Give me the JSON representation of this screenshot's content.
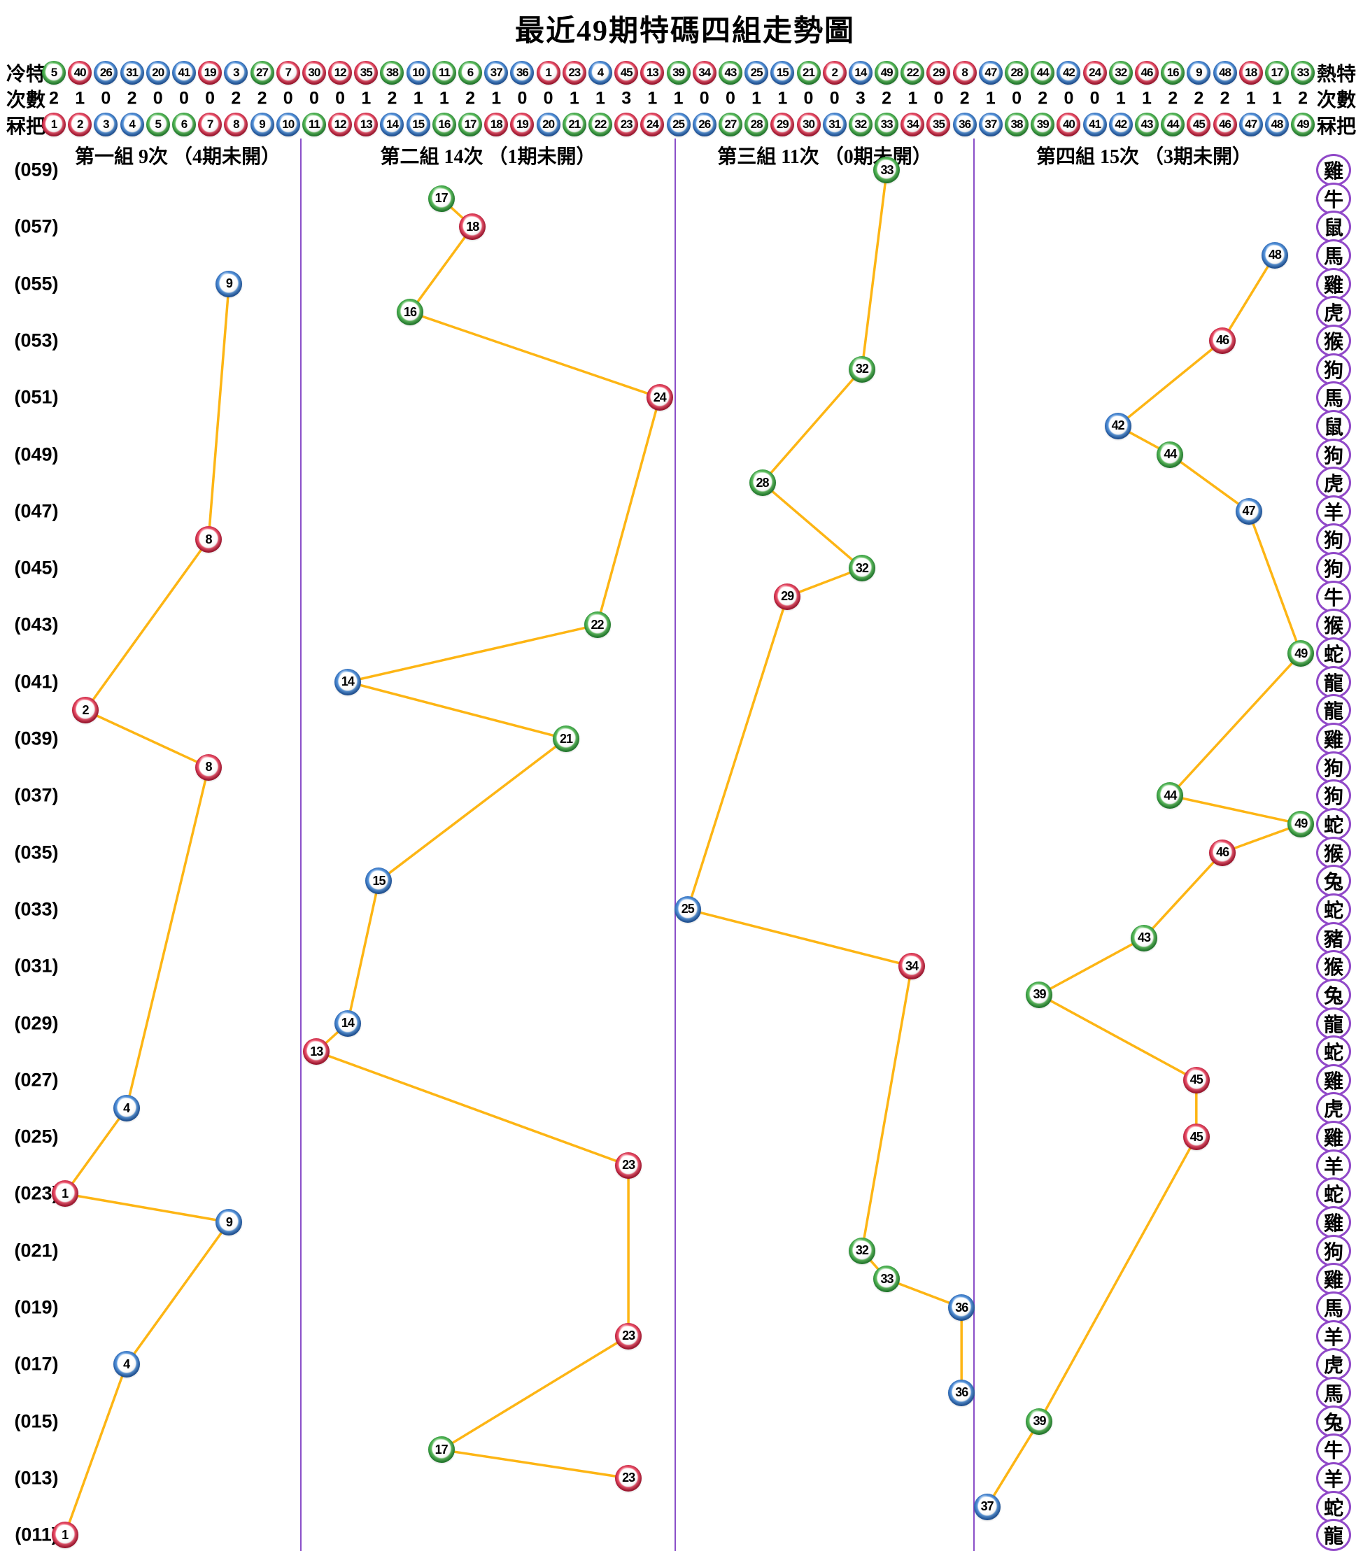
{
  "title": "最近49期特碼四組走勢圖",
  "header": {
    "cold_label": "冷特",
    "hot_label": "熱特",
    "counts_label": "次數",
    "number_label": "冧把",
    "cold_order": [
      5,
      40,
      26,
      31,
      20,
      41,
      19,
      3,
      27,
      7,
      30,
      12,
      35,
      38,
      10,
      11,
      6,
      37,
      36,
      1,
      23,
      4,
      45,
      13,
      39,
      34,
      43,
      25,
      15,
      21,
      2,
      14,
      49,
      22,
      29,
      8,
      47,
      28,
      44,
      42,
      24,
      32,
      46,
      16,
      9,
      48,
      18,
      17,
      33
    ],
    "counts": [
      2,
      1,
      0,
      2,
      0,
      0,
      0,
      2,
      2,
      0,
      0,
      0,
      1,
      2,
      1,
      1,
      2,
      1,
      0,
      0,
      1,
      1,
      3,
      1,
      1,
      0,
      0,
      1,
      1,
      0,
      0,
      3,
      2,
      1,
      0,
      2,
      1,
      0,
      2,
      0,
      0,
      1,
      1,
      2,
      2,
      2,
      1,
      1,
      2
    ],
    "numbers": [
      1,
      2,
      3,
      4,
      5,
      6,
      7,
      8,
      9,
      10,
      11,
      12,
      13,
      14,
      15,
      16,
      17,
      18,
      19,
      20,
      21,
      22,
      23,
      24,
      25,
      26,
      27,
      28,
      29,
      30,
      31,
      32,
      33,
      34,
      35,
      36,
      37,
      38,
      39,
      40,
      41,
      42,
      43,
      44,
      45,
      46,
      47,
      48,
      49
    ]
  },
  "groups": [
    {
      "label": "第一組 9次 （4期未開）",
      "start": 1,
      "end": 12
    },
    {
      "label": "第二組 14次 （1期未開）",
      "start": 13,
      "end": 24
    },
    {
      "label": "第三組 11次 （0期未開）",
      "start": 25,
      "end": 36
    },
    {
      "label": "第四組 15次 （3期未開）",
      "start": 37,
      "end": 49
    }
  ],
  "periods": [
    {
      "period": "059",
      "label": "(059)",
      "number": 33,
      "zodiac": "雞"
    },
    {
      "period": "058",
      "label": "",
      "number": 17,
      "zodiac": "牛"
    },
    {
      "period": "057",
      "label": "(057)",
      "number": 18,
      "zodiac": "鼠"
    },
    {
      "period": "056",
      "label": "",
      "number": 48,
      "zodiac": "馬"
    },
    {
      "period": "055",
      "label": "(055)",
      "number": 9,
      "zodiac": "雞"
    },
    {
      "period": "054",
      "label": "",
      "number": 16,
      "zodiac": "虎"
    },
    {
      "period": "053",
      "label": "(053)",
      "number": 46,
      "zodiac": "猴"
    },
    {
      "period": "052",
      "label": "",
      "number": 32,
      "zodiac": "狗"
    },
    {
      "period": "051",
      "label": "(051)",
      "number": 24,
      "zodiac": "馬"
    },
    {
      "period": "050",
      "label": "",
      "number": 42,
      "zodiac": "鼠"
    },
    {
      "period": "049",
      "label": "(049)",
      "number": 44,
      "zodiac": "狗"
    },
    {
      "period": "048",
      "label": "",
      "number": 28,
      "zodiac": "虎"
    },
    {
      "period": "047",
      "label": "(047)",
      "number": 47,
      "zodiac": "羊"
    },
    {
      "period": "046",
      "label": "",
      "number": 8,
      "zodiac": "狗"
    },
    {
      "period": "045",
      "label": "(045)",
      "number": 32,
      "zodiac": "狗"
    },
    {
      "period": "044",
      "label": "",
      "number": 29,
      "zodiac": "牛"
    },
    {
      "period": "043",
      "label": "(043)",
      "number": 22,
      "zodiac": "猴"
    },
    {
      "period": "042",
      "label": "",
      "number": 49,
      "zodiac": "蛇"
    },
    {
      "period": "041",
      "label": "(041)",
      "number": 14,
      "zodiac": "龍"
    },
    {
      "period": "040",
      "label": "",
      "number": 2,
      "zodiac": "龍"
    },
    {
      "period": "039",
      "label": "(039)",
      "number": 21,
      "zodiac": "雞"
    },
    {
      "period": "038",
      "label": "",
      "number": 8,
      "zodiac": "狗"
    },
    {
      "period": "037",
      "label": "(037)",
      "number": 44,
      "zodiac": "狗"
    },
    {
      "period": "036",
      "label": "",
      "number": 49,
      "zodiac": "蛇"
    },
    {
      "period": "035",
      "label": "(035)",
      "number": 46,
      "zodiac": "猴"
    },
    {
      "period": "034",
      "label": "",
      "number": 15,
      "zodiac": "兔"
    },
    {
      "period": "033",
      "label": "(033)",
      "number": 25,
      "zodiac": "蛇"
    },
    {
      "period": "032",
      "label": "",
      "number": 43,
      "zodiac": "豬"
    },
    {
      "period": "031",
      "label": "(031)",
      "number": 34,
      "zodiac": "猴"
    },
    {
      "period": "030",
      "label": "",
      "number": 39,
      "zodiac": "兔"
    },
    {
      "period": "029",
      "label": "(029)",
      "number": 14,
      "zodiac": "龍"
    },
    {
      "period": "028",
      "label": "",
      "number": 13,
      "zodiac": "蛇"
    },
    {
      "period": "027",
      "label": "(027)",
      "number": 45,
      "zodiac": "雞"
    },
    {
      "period": "026",
      "label": "",
      "number": 4,
      "zodiac": "虎"
    },
    {
      "period": "025",
      "label": "(025)",
      "number": 45,
      "zodiac": "雞"
    },
    {
      "period": "024",
      "label": "",
      "number": 23,
      "zodiac": "羊"
    },
    {
      "period": "023",
      "label": "(023)",
      "number": 1,
      "zodiac": "蛇"
    },
    {
      "period": "022",
      "label": "",
      "number": 9,
      "zodiac": "雞"
    },
    {
      "period": "021",
      "label": "(021)",
      "number": 32,
      "zodiac": "狗"
    },
    {
      "period": "020",
      "label": "",
      "number": 33,
      "zodiac": "雞"
    },
    {
      "period": "019",
      "label": "(019)",
      "number": 36,
      "zodiac": "馬"
    },
    {
      "period": "018",
      "label": "",
      "number": 23,
      "zodiac": "羊"
    },
    {
      "period": "017",
      "label": "(017)",
      "number": 4,
      "zodiac": "虎"
    },
    {
      "period": "016",
      "label": "",
      "number": 36,
      "zodiac": "馬"
    },
    {
      "period": "015",
      "label": "(015)",
      "number": 39,
      "zodiac": "兔"
    },
    {
      "period": "014",
      "label": "",
      "number": 17,
      "zodiac": "牛"
    },
    {
      "period": "013",
      "label": "(013)",
      "number": 23,
      "zodiac": "羊"
    },
    {
      "period": "012",
      "label": "",
      "number": 37,
      "zodiac": "蛇"
    },
    {
      "period": "011",
      "label": "(011)",
      "number": 1,
      "zodiac": "龍"
    }
  ],
  "ball_colors": {
    "red": [
      1,
      2,
      7,
      8,
      12,
      13,
      18,
      19,
      23,
      24,
      29,
      30,
      34,
      35,
      40,
      45,
      46
    ],
    "blue": [
      3,
      4,
      9,
      10,
      14,
      15,
      20,
      25,
      26,
      31,
      36,
      37,
      41,
      42,
      47,
      48
    ],
    "green": [
      5,
      6,
      11,
      16,
      17,
      21,
      22,
      27,
      28,
      32,
      33,
      38,
      39,
      43,
      44,
      49
    ]
  },
  "colors": {
    "red": "#c00d2e",
    "blue": "#1c5cb4",
    "green": "#1f9230",
    "trend_line": "#fdb514",
    "divider": "#8a4fc8",
    "zodiac_ring": "#9048c8"
  },
  "chart_data": {
    "type": "line",
    "title": "最近49期特碼四組走勢圖",
    "x_axis": "冧把 1-49，分四組：1-12 / 13-24 / 25-36 / 37-49",
    "y_axis": "期號 059（頂）至 011（底）",
    "series": [
      {
        "name": "第一組 9次 （4期未開）",
        "points": [
          {
            "period": "055",
            "value": 9
          },
          {
            "period": "046",
            "value": 8
          },
          {
            "period": "040",
            "value": 2
          },
          {
            "period": "038",
            "value": 8
          },
          {
            "period": "026",
            "value": 4
          },
          {
            "period": "023",
            "value": 1
          },
          {
            "period": "022",
            "value": 9
          },
          {
            "period": "017",
            "value": 4
          },
          {
            "period": "011",
            "value": 1
          }
        ]
      },
      {
        "name": "第二組 14次 （1期未開）",
        "points": [
          {
            "period": "058",
            "value": 17
          },
          {
            "period": "057",
            "value": 18
          },
          {
            "period": "054",
            "value": 16
          },
          {
            "period": "051",
            "value": 24
          },
          {
            "period": "043",
            "value": 22
          },
          {
            "period": "041",
            "value": 14
          },
          {
            "period": "039",
            "value": 21
          },
          {
            "period": "034",
            "value": 15
          },
          {
            "period": "029",
            "value": 14
          },
          {
            "period": "028",
            "value": 13
          },
          {
            "period": "024",
            "value": 23
          },
          {
            "period": "018",
            "value": 23
          },
          {
            "period": "014",
            "value": 17
          },
          {
            "period": "013",
            "value": 23
          }
        ]
      },
      {
        "name": "第三組 11次 （0期未開）",
        "points": [
          {
            "period": "059",
            "value": 33
          },
          {
            "period": "052",
            "value": 32
          },
          {
            "period": "048",
            "value": 28
          },
          {
            "period": "045",
            "value": 32
          },
          {
            "period": "044",
            "value": 29
          },
          {
            "period": "033",
            "value": 25
          },
          {
            "period": "031",
            "value": 34
          },
          {
            "period": "021",
            "value": 32
          },
          {
            "period": "020",
            "value": 33
          },
          {
            "period": "019",
            "value": 36
          },
          {
            "period": "016",
            "value": 36
          }
        ]
      },
      {
        "name": "第四組 15次 （3期未開）",
        "points": [
          {
            "period": "056",
            "value": 48
          },
          {
            "period": "053",
            "value": 46
          },
          {
            "period": "050",
            "value": 42
          },
          {
            "period": "049",
            "value": 44
          },
          {
            "period": "047",
            "value": 47
          },
          {
            "period": "042",
            "value": 49
          },
          {
            "period": "037",
            "value": 44
          },
          {
            "period": "036",
            "value": 49
          },
          {
            "period": "035",
            "value": 46
          },
          {
            "period": "032",
            "value": 43
          },
          {
            "period": "030",
            "value": 39
          },
          {
            "period": "027",
            "value": 45
          },
          {
            "period": "025",
            "value": 45
          },
          {
            "period": "015",
            "value": 39
          },
          {
            "period": "012",
            "value": 37
          }
        ]
      }
    ],
    "legend_position": "column headers",
    "grid": false
  }
}
